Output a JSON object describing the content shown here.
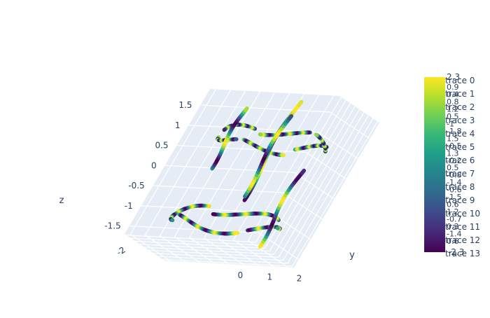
{
  "chart_data": {
    "type": "line3d",
    "title": "",
    "axes": {
      "x": {
        "label": "",
        "tick_labels": [
          "-2"
        ]
      },
      "y": {
        "label": "y",
        "tick_labels": [
          "0",
          "1",
          "2"
        ]
      },
      "z": {
        "label": "z",
        "tick_labels": [
          "-1.5",
          "-1",
          "-0.5",
          "0",
          "0.5",
          "1",
          "1.5"
        ]
      }
    },
    "grid": true,
    "colorscale": "viridis",
    "colorscale_stops": [
      "#440154",
      "#482878",
      "#3e4989",
      "#31688e",
      "#26828e",
      "#1f9e89",
      "#35b779",
      "#6ece58",
      "#b5de2b",
      "#fde725"
    ],
    "legend_position": "right",
    "series": [
      {
        "name": "trace 0"
      },
      {
        "name": "trace 1"
      },
      {
        "name": "trace 2"
      },
      {
        "name": "trace 3"
      },
      {
        "name": "trace 4"
      },
      {
        "name": "trace 5"
      },
      {
        "name": "trace 6"
      },
      {
        "name": "trace 7"
      },
      {
        "name": "trace 8"
      },
      {
        "name": "trace 9"
      },
      {
        "name": "trace 10"
      },
      {
        "name": "trace 11"
      },
      {
        "name": "trace 12"
      },
      {
        "name": "trace 13"
      }
    ],
    "colorbar": {
      "top_label": "2.3",
      "bottom_label": "-2.3",
      "overlapping_tick_labels": [
        "0.9",
        "0.4",
        "0.8",
        "1.2",
        "0.5",
        "-1",
        "-1.8",
        "1.5",
        "-0.5",
        "1.3",
        "-0.2",
        "0.5",
        "-0.8",
        "-1.4",
        "-0.6",
        "-1.5",
        "0.6",
        "1.2",
        "-0.7",
        "0.3",
        "-1.4",
        "0.6"
      ]
    }
  }
}
